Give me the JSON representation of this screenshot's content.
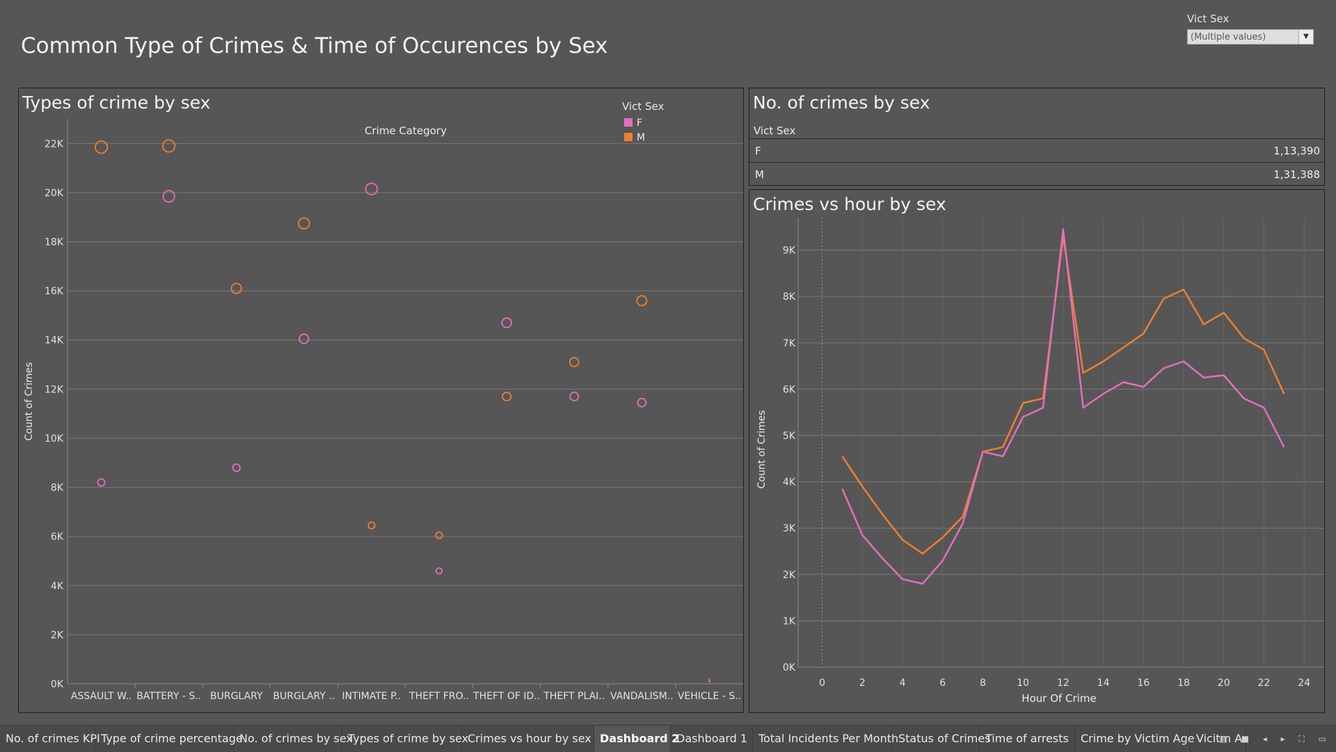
{
  "dashboard_title": "Common Type of Crimes & Time of Occurences by Sex",
  "filter": {
    "label": "Vict Sex",
    "value": "(Multiple values)"
  },
  "colors": {
    "F": "#e36fbd",
    "M": "#f07f2e",
    "background": "#565656"
  },
  "left_panel": {
    "title": "Types of crime by sex",
    "legend_title": "Vict Sex",
    "legend": [
      "F",
      "M"
    ]
  },
  "kpi": {
    "title": "No. of crimes by sex",
    "header": "Vict Sex",
    "rows": [
      {
        "key": "F",
        "value": "1,13,390"
      },
      {
        "key": "M",
        "value": "1,31,388"
      }
    ]
  },
  "right_panel": {
    "title": "Crimes vs hour by sex"
  },
  "chart_data": [
    {
      "type": "scatter",
      "title": "Types of crime by sex",
      "column_title": "Crime Category",
      "ylabel": "Count of Crimes",
      "ylim": [
        0,
        23000
      ],
      "y_ticks": [
        "0K",
        "2K",
        "4K",
        "6K",
        "8K",
        "10K",
        "12K",
        "14K",
        "16K",
        "18K",
        "20K",
        "22K"
      ],
      "categories": [
        "ASSAULT W..",
        "BATTERY - S..",
        "BURGLARY",
        "BURGLARY ..",
        "INTIMATE P..",
        "THEFT FRO..",
        "THEFT OF ID..",
        "THEFT PLAI..",
        "VANDALISM..",
        "VEHICLE - S.."
      ],
      "series": [
        {
          "name": "F",
          "values": [
            8200,
            19850,
            8800,
            14050,
            20150,
            4600,
            14700,
            11700,
            11450,
            null
          ]
        },
        {
          "name": "M",
          "values": [
            21850,
            21900,
            16100,
            18750,
            6450,
            6050,
            11700,
            13100,
            15600,
            50
          ]
        }
      ],
      "legend": "top-right",
      "grid": true
    },
    {
      "type": "line",
      "title": "Crimes vs hour by sex",
      "xlabel": "Hour Of Crime",
      "ylabel": "Count of Crimes",
      "xlim": [
        -1.2,
        25
      ],
      "ylim": [
        0,
        9700
      ],
      "x_ticks": [
        "0",
        "2",
        "4",
        "6",
        "8",
        "10",
        "12",
        "14",
        "16",
        "18",
        "20",
        "22",
        "24"
      ],
      "y_ticks": [
        "0K",
        "1K",
        "2K",
        "3K",
        "4K",
        "5K",
        "6K",
        "7K",
        "8K",
        "9K"
      ],
      "x": [
        1,
        2,
        3,
        4,
        5,
        6,
        7,
        8,
        9,
        10,
        11,
        12,
        13,
        14,
        15,
        16,
        17,
        18,
        19,
        20,
        21,
        22,
        23
      ],
      "series": [
        {
          "name": "F",
          "values": [
            3850,
            2850,
            2350,
            1900,
            1800,
            2300,
            3100,
            4650,
            4550,
            5400,
            5600,
            9450,
            5600,
            5900,
            6150,
            6050,
            6450,
            6600,
            6250,
            6300,
            5800,
            5600,
            4750
          ]
        },
        {
          "name": "M",
          "values": [
            4550,
            3900,
            3300,
            2750,
            2450,
            2800,
            3250,
            4650,
            4750,
            5700,
            5800,
            9300,
            6350,
            6600,
            6900,
            7200,
            7950,
            8150,
            7400,
            7650,
            7100,
            6850,
            5900
          ]
        }
      ],
      "grid": true
    }
  ],
  "tabs": [
    {
      "label": "No. of crimes KPI",
      "active": false
    },
    {
      "label": "Type of crime percentage",
      "active": false
    },
    {
      "label": "No. of crimes by sex",
      "active": false
    },
    {
      "label": "Types of crime by sex",
      "active": false
    },
    {
      "label": "Crimes vs hour by sex",
      "active": false
    },
    {
      "label": "Dashboard 2",
      "active": true
    },
    {
      "label": "Dashboard 1",
      "active": false
    },
    {
      "label": "Total Incidents Per Month",
      "active": false
    },
    {
      "label": "Status of Crimes",
      "active": false
    },
    {
      "label": "Time of arrests",
      "active": false
    },
    {
      "label": "Crime by Victim Age",
      "active": false
    },
    {
      "label": "Vicitm A",
      "active": false
    }
  ]
}
